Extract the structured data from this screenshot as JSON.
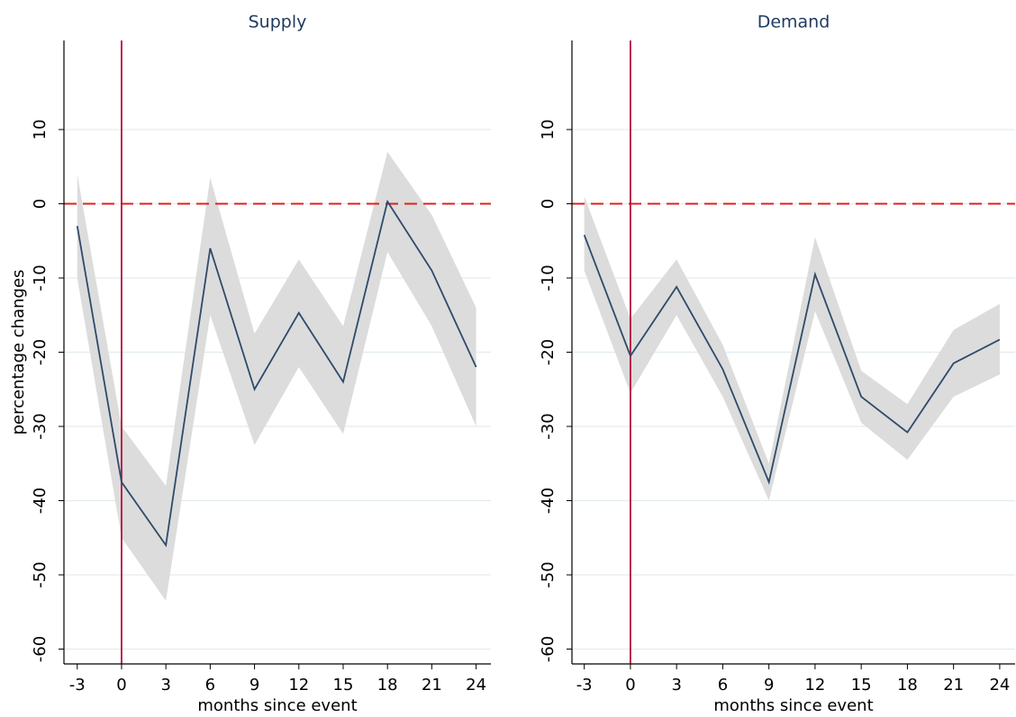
{
  "chart_data": [
    {
      "type": "line",
      "title": "Supply",
      "xlabel": "months since event",
      "ylabel": "percentage changes",
      "x": [
        -3,
        0,
        3,
        6,
        9,
        12,
        15,
        18,
        21,
        24
      ],
      "series": [
        {
          "color": "#2e4a6b",
          "values": [
            -3,
            -37.5,
            -46,
            -6,
            -25,
            -14.7,
            -24,
            0.3,
            -9,
            -22
          ]
        }
      ],
      "band": {
        "color": "#dcdcdc",
        "upper": [
          4,
          -30,
          -38,
          3.5,
          -17.5,
          -7.5,
          -16.5,
          7,
          -1.5,
          -14
        ],
        "lower": [
          -10,
          -45,
          -53.5,
          -15,
          -32.5,
          -22,
          -31,
          -6.5,
          -16.5,
          -30
        ]
      },
      "xlim": [
        -3.9,
        25
      ],
      "ylim": [
        -62,
        22
      ],
      "xticks": [
        -3,
        0,
        3,
        6,
        9,
        12,
        15,
        18,
        21,
        24
      ],
      "yticks": [
        -60,
        -50,
        -40,
        -30,
        -20,
        -10,
        0,
        10
      ],
      "grid": true,
      "vline": 0,
      "vline_color": "#b5123a",
      "hline": 0,
      "hline_color": "#e0201c"
    },
    {
      "type": "line",
      "title": "Demand",
      "xlabel": "months since event",
      "x": [
        -3,
        0,
        3,
        6,
        9,
        12,
        15,
        18,
        21,
        24
      ],
      "series": [
        {
          "color": "#2e4a6b",
          "values": [
            -4.2,
            -20.5,
            -11.2,
            -22.3,
            -37.5,
            -9.5,
            -26,
            -30.8,
            -21.5,
            -18.3
          ]
        }
      ],
      "band": {
        "color": "#dcdcdc",
        "upper": [
          1,
          -15.5,
          -7.5,
          -19,
          -35,
          -4.5,
          -22.5,
          -27,
          -17,
          -13.5
        ],
        "lower": [
          -9,
          -25.5,
          -15,
          -26,
          -40,
          -14.5,
          -29.5,
          -34.5,
          -26,
          -23
        ]
      },
      "xlim": [
        -3.8,
        25
      ],
      "ylim": [
        -62,
        22
      ],
      "xticks": [
        -3,
        0,
        3,
        6,
        9,
        12,
        15,
        18,
        21,
        24
      ],
      "yticks": [
        -60,
        -50,
        -40,
        -30,
        -20,
        -10,
        0,
        10
      ],
      "grid": true,
      "vline": 0,
      "vline_color": "#b5123a",
      "hline": 0,
      "hline_color": "#e0201c"
    }
  ]
}
